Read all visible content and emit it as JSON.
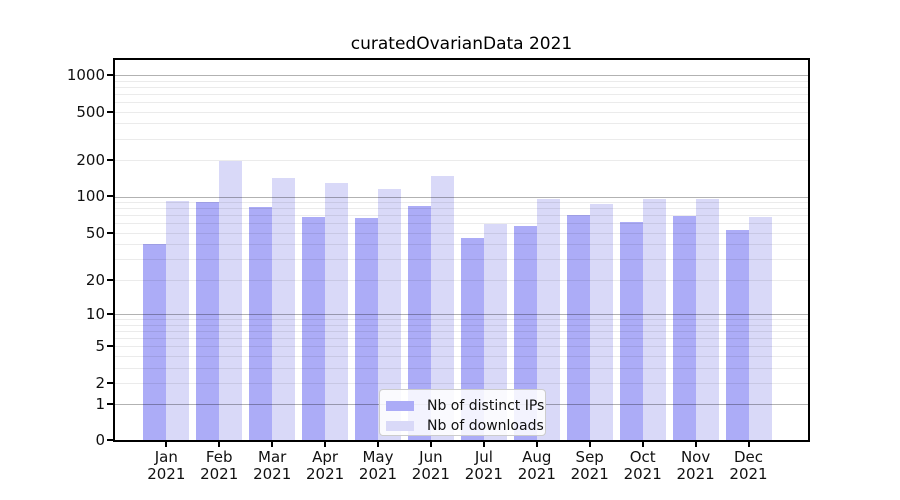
{
  "title": "curatedOvarianData 2021",
  "chart_data": {
    "type": "bar",
    "title": "curatedOvarianData 2021",
    "categories": [
      "Jan",
      "Feb",
      "Mar",
      "Apr",
      "May",
      "Jun",
      "Jul",
      "Aug",
      "Sep",
      "Oct",
      "Nov",
      "Dec"
    ],
    "x_tick_second_line": "2021",
    "series": [
      {
        "name": "Nb of distinct IPs",
        "color": "#acacf7",
        "values": [
          40,
          90,
          82,
          67,
          66,
          84,
          45,
          57,
          70,
          62,
          69,
          53
        ]
      },
      {
        "name": "Nb of downloads",
        "color": "#d9d9f8",
        "values": [
          91,
          197,
          143,
          130,
          115,
          148,
          59,
          96,
          86,
          96,
          96,
          68
        ]
      }
    ],
    "y_ticks": [
      0,
      1,
      2,
      5,
      10,
      20,
      50,
      100,
      200,
      500,
      1000
    ],
    "y_scale": "log10(1+x)",
    "ylim": [
      0,
      1150
    ],
    "grid": "horizontal major+minor, drawn over bars",
    "legend_position": "lower center"
  },
  "colors": {
    "bar_distinct_ips": "#acacf7",
    "bar_downloads": "#d9d9f8",
    "grid_major": "rgba(0,0,0,0.30)",
    "grid_minor": "rgba(0,0,0,0.08)",
    "axis_spine": "#000000",
    "background": "#ffffff"
  }
}
